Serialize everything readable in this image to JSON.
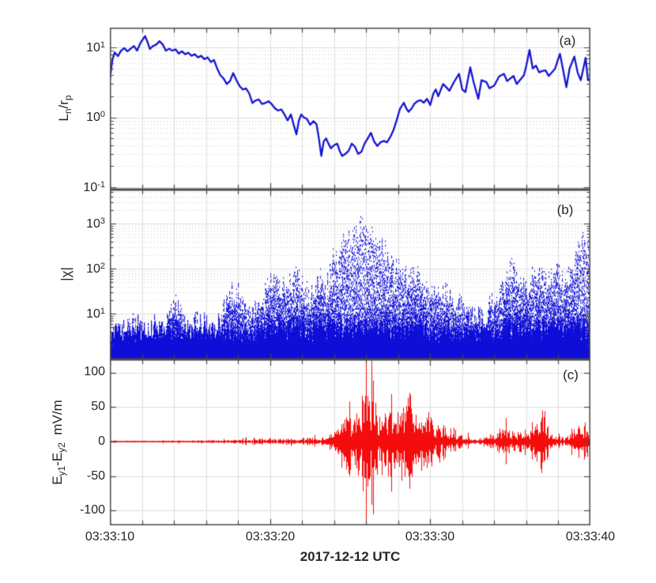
{
  "figure": {
    "xlabel": "2017-12-12 UTC",
    "x_tick_labels": [
      "03:33:10",
      "03:33:20",
      "03:33:30",
      "03:33:40"
    ],
    "x_range_seconds": [
      0,
      30
    ],
    "x_major_tick_seconds": 10,
    "x_minor_tick_seconds": 2,
    "frame_color": "#4a4a4a",
    "grid_color": "#dedede",
    "minor_grid_color": "#cfcfcf",
    "text_color": "#262626"
  },
  "chart_data": [
    {
      "panel": "a",
      "panel_label": "(a)",
      "type": "line",
      "color": "#1414d2",
      "yscale": "log",
      "ylim": [
        0.0925,
        19.2
      ],
      "yticks": [
        10,
        1,
        0.1
      ],
      "ytick_labels": [
        {
          "b": "10",
          "e": "1"
        },
        {
          "b": "10",
          "e": "0"
        },
        {
          "b": "10",
          "e": "-1"
        }
      ],
      "ylabel_parts": [
        "L",
        "n",
        "/r",
        "p"
      ],
      "x_seconds": [
        0,
        0.15,
        0.3,
        0.5,
        0.7,
        0.9,
        1.1,
        1.3,
        1.5,
        1.7,
        1.9,
        2.1,
        2.2,
        2.35,
        2.5,
        2.7,
        2.9,
        3.1,
        3.3,
        3.5,
        3.7,
        3.9,
        4.1,
        4.3,
        4.5,
        4.7,
        4.9,
        5.1,
        5.3,
        5.5,
        5.7,
        5.9,
        6.1,
        6.3,
        6.5,
        6.7,
        6.9,
        7.1,
        7.3,
        7.5,
        7.7,
        7.9,
        8.1,
        8.3,
        8.5,
        8.7,
        8.9,
        9.1,
        9.3,
        9.5,
        9.7,
        9.9,
        10.1,
        10.3,
        10.5,
        10.7,
        10.9,
        11.1,
        11.3,
        11.5,
        11.65,
        11.8,
        11.95,
        12.1,
        12.3,
        12.5,
        12.7,
        12.9,
        13.05,
        13.2,
        13.35,
        13.5,
        13.65,
        13.8,
        14,
        14.2,
        14.35,
        14.5,
        14.7,
        14.9,
        15.1,
        15.3,
        15.5,
        15.7,
        15.9,
        16.1,
        16.3,
        16.5,
        16.7,
        16.9,
        17.1,
        17.3,
        17.5,
        17.7,
        17.9,
        18.1,
        18.35,
        18.5,
        18.65,
        18.85,
        19,
        19.2,
        19.4,
        19.6,
        19.8,
        20,
        20.2,
        20.35,
        20.5,
        20.8,
        21,
        21.2,
        21.5,
        21.8,
        22,
        22.2,
        22.5,
        22.7,
        23,
        23.2,
        23.5,
        23.7,
        24,
        24.3,
        24.6,
        24.8,
        25,
        25.2,
        25.4,
        25.6,
        25.85,
        26,
        26.2,
        26.4,
        26.6,
        26.8,
        27,
        27.2,
        27.4,
        27.6,
        27.8,
        28,
        28.1,
        28.3,
        28.5,
        28.7,
        29,
        29.2,
        29.4,
        29.6,
        29.7,
        29.85,
        30
      ],
      "y_values": [
        3.5,
        6.5,
        8.5,
        7.5,
        9,
        9.8,
        8.8,
        9.6,
        10.5,
        9,
        11.5,
        13.5,
        14.5,
        12,
        9.5,
        10.5,
        11,
        12.3,
        11,
        9,
        9.6,
        9,
        9.4,
        8.2,
        8.8,
        8,
        8.4,
        7.6,
        8,
        7.2,
        7.6,
        6.8,
        7.2,
        6.2,
        6.6,
        5,
        4,
        3.6,
        3,
        3.3,
        4.3,
        3.4,
        2.8,
        2.5,
        2.6,
        2.2,
        1.6,
        1.75,
        1.8,
        1.55,
        1.6,
        1.7,
        1.55,
        1.35,
        1.25,
        1.3,
        1.1,
        0.9,
        1.1,
        0.75,
        0.57,
        0.9,
        1.1,
        1,
        0.95,
        0.78,
        0.88,
        0.8,
        0.5,
        0.28,
        0.45,
        0.5,
        0.42,
        0.36,
        0.4,
        0.42,
        0.33,
        0.28,
        0.3,
        0.33,
        0.42,
        0.38,
        0.3,
        0.32,
        0.42,
        0.5,
        0.6,
        0.45,
        0.39,
        0.44,
        0.46,
        0.44,
        0.52,
        0.65,
        0.9,
        1.3,
        1.62,
        1.35,
        1.2,
        1.35,
        1.55,
        1.7,
        1.76,
        1.62,
        1.84,
        1.5,
        2.2,
        2.5,
        2,
        3,
        2.7,
        2.4,
        3.25,
        4.2,
        2.5,
        2.3,
        5.2,
        3.25,
        1.84,
        3.4,
        3.2,
        2.6,
        2.85,
        3.85,
        4.2,
        3.3,
        3.6,
        3.9,
        3,
        3.4,
        4,
        5.5,
        9.2,
        5,
        5.5,
        4.4,
        4.6,
        4.7,
        3.9,
        4.4,
        5,
        7,
        8.1,
        4.7,
        2.7,
        5,
        7.4,
        4.4,
        3.4,
        5.5,
        7.1,
        3.4,
        3.5
      ]
    },
    {
      "panel": "b",
      "panel_label": "(b)",
      "type": "scatter",
      "color": "#0e0ed8",
      "yscale": "log",
      "ylim": [
        0.96,
        5675
      ],
      "yticks": [
        1000,
        100,
        10
      ],
      "ytick_labels": [
        {
          "b": "10",
          "e": "3"
        },
        {
          "b": "10",
          "e": "2"
        },
        {
          "b": "10",
          "e": "1"
        }
      ],
      "ylabel_parts": [
        "|χ|"
      ],
      "envelope_step_seconds": 0.5,
      "envelope_max": [
        7,
        6,
        8,
        12,
        7,
        8,
        9,
        10,
        32,
        12,
        9,
        15,
        10,
        9,
        12,
        65,
        45,
        15,
        18,
        25,
        95,
        100,
        45,
        160,
        70,
        35,
        120,
        35,
        300,
        700,
        1000,
        1850,
        1100,
        760,
        500,
        250,
        160,
        110,
        130,
        76,
        45,
        42,
        52,
        34,
        25,
        18,
        15,
        18,
        45,
        55,
        200,
        90,
        60,
        150,
        120,
        100,
        160,
        100,
        250,
        1000,
        300
      ],
      "envelope_floor": 1.2
    },
    {
      "panel": "c",
      "panel_label": "(c)",
      "type": "waveform",
      "color": "#f50c0c",
      "yscale": "linear",
      "yunit": "mV/m",
      "ylim": [
        -121.3,
        119
      ],
      "yticks": [
        100,
        50,
        0,
        -50,
        -100
      ],
      "ytick_labels": [
        "100",
        "50",
        "0",
        "-50",
        "-100"
      ],
      "ylabel_parts": [
        "E",
        "y1",
        "-E",
        "y2",
        "  mV/m"
      ],
      "envelope_step_seconds": 0.5,
      "envelope_amp": [
        1.5,
        1.5,
        1.5,
        1.5,
        1.5,
        1.5,
        1.5,
        1.5,
        1.8,
        2,
        2,
        2,
        2,
        2.5,
        2.5,
        3,
        4,
        4,
        4,
        5,
        5,
        5,
        6,
        5,
        5,
        6,
        6,
        8,
        20,
        50,
        45,
        60,
        115,
        55,
        50,
        55,
        45,
        90,
        45,
        40,
        42,
        35,
        25,
        20,
        12,
        8,
        6,
        8,
        15,
        22,
        20,
        18,
        20,
        25,
        65,
        15,
        12,
        6,
        25,
        30,
        28
      ],
      "clip_spike_seconds": 16
    }
  ]
}
